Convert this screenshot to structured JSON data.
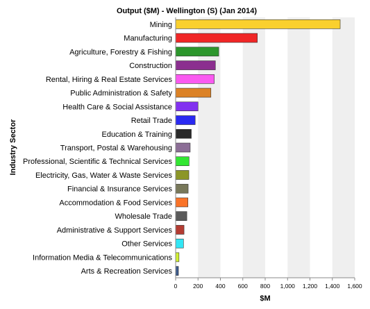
{
  "chart_data": {
    "type": "bar",
    "orientation": "horizontal",
    "title": "Output ($M) - Wellington (S) (Jan 2014)",
    "xlabel": "$M",
    "ylabel": "Industry Sector",
    "xlim": [
      0,
      1600
    ],
    "x_ticks": [
      "0",
      "200",
      "400",
      "600",
      "800",
      "1,000",
      "1,200",
      "1,400",
      "1,600"
    ],
    "grid": "alternating vertical bands",
    "categories": [
      "Mining",
      "Manufacturing",
      "Agriculture, Forestry & Fishing",
      "Construction",
      "Rental, Hiring & Real Estate Services",
      "Public Administration & Safety",
      "Health Care & Social Assistance",
      "Retail Trade",
      "Education & Training",
      "Transport, Postal & Warehousing",
      "Professional, Scientific & Technical Services",
      "Electricity, Gas, Water & Waste Services",
      "Financial & Insurance Services",
      "Accommodation & Food Services",
      "Wholesale Trade",
      "Administrative & Support Services",
      "Other Services",
      "Information Media & Telecommunications",
      "Arts & Recreation Services"
    ],
    "values": [
      1470,
      730,
      385,
      355,
      345,
      315,
      200,
      175,
      140,
      130,
      120,
      118,
      112,
      110,
      100,
      75,
      70,
      30,
      25
    ],
    "colors": [
      "#fad02e",
      "#f02626",
      "#2c962c",
      "#8b2f8f",
      "#fa5af0",
      "#dc8226",
      "#8232f0",
      "#2a2af2",
      "#2a2a2a",
      "#8c6e96",
      "#32e632",
      "#8c9628",
      "#78785a",
      "#fa7328",
      "#5a5a5a",
      "#b43c32",
      "#32e6f5",
      "#d2f032",
      "#3c5a8c"
    ]
  }
}
